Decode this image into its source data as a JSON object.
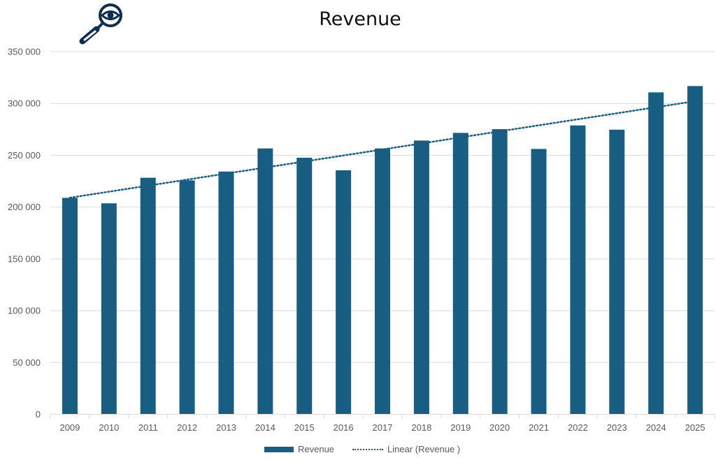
{
  "chart_data": {
    "type": "bar",
    "title": "Revenue",
    "xlabel": "",
    "ylabel": "",
    "categories": [
      "2009",
      "2010",
      "2011",
      "2012",
      "2013",
      "2014",
      "2015",
      "2016",
      "2017",
      "2018",
      "2019",
      "2020",
      "2021",
      "2022",
      "2023",
      "2024",
      "2025"
    ],
    "series": [
      {
        "name": "Revenue",
        "type": "bar",
        "color": "#185e82",
        "values": [
          208900,
          203600,
          228300,
          225800,
          234300,
          256600,
          247600,
          235500,
          256600,
          264200,
          271600,
          275200,
          256100,
          278800,
          274700,
          310700,
          316800
        ]
      },
      {
        "name": "Linear (Revenue )",
        "type": "trendline-linear",
        "color": "#185e82",
        "style": "dotted"
      }
    ],
    "ylim": [
      0,
      350000
    ],
    "yticks": [
      0,
      50000,
      100000,
      150000,
      200000,
      250000,
      300000,
      350000
    ],
    "ytick_labels": [
      "0",
      "50 000",
      "100 000",
      "150 000",
      "200 000",
      "250 000",
      "300 000",
      "350 000"
    ],
    "grid": true,
    "legend_position": "bottom"
  },
  "logo": {
    "icon": "magnifier-eye-icon",
    "color": "#0f2d52"
  },
  "legend": {
    "items": [
      "Revenue",
      "Linear (Revenue )"
    ]
  }
}
